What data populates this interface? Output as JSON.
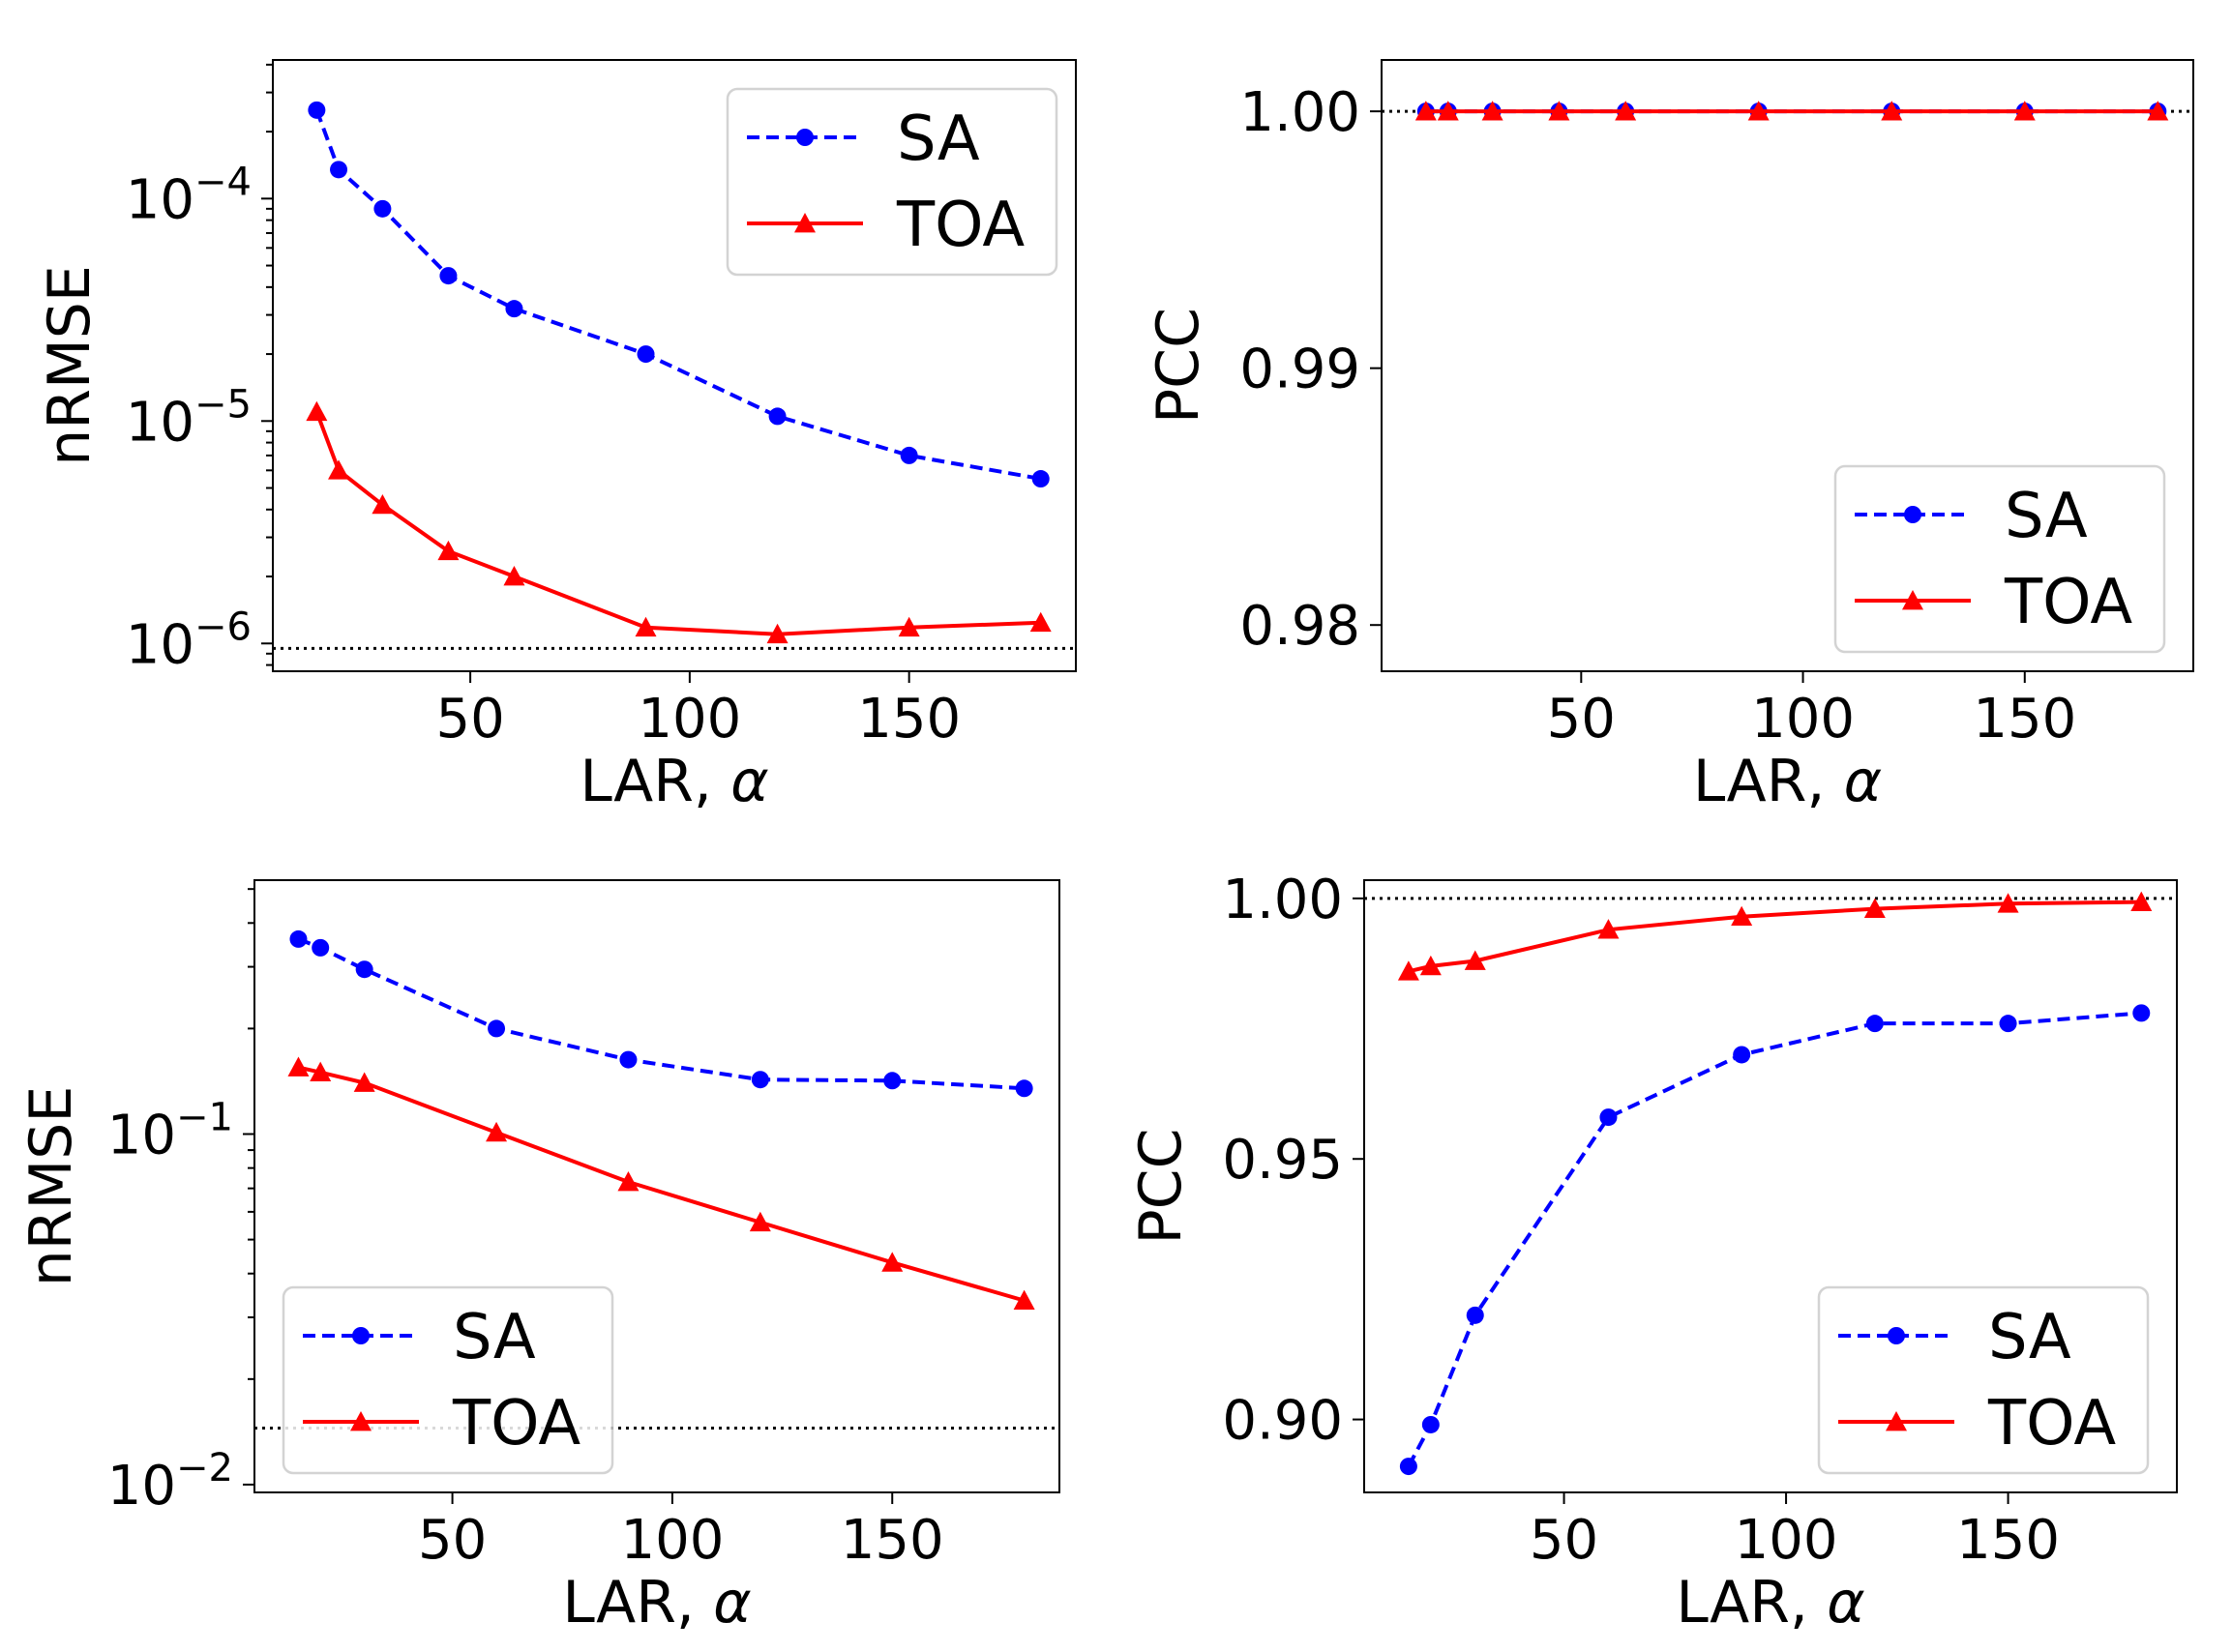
{
  "chart_data": [
    {
      "type": "line",
      "panel": "top-left",
      "xlabel": "LAR, α",
      "ylabel": "nRMSE",
      "yscale": "log",
      "xlim": [
        5,
        188
      ],
      "ylim": [
        7.5e-07,
        0.00042
      ],
      "xticks": [
        50,
        100,
        150
      ],
      "yticks": [
        {
          "value": 1e-06,
          "base": "10",
          "exp": "−6"
        },
        {
          "value": 1e-05,
          "base": "10",
          "exp": "−5"
        },
        {
          "value": 0.0001,
          "base": "10",
          "exp": "−4"
        }
      ],
      "reference_line": 9.5e-07,
      "legend_position": "upper right",
      "x": [
        15,
        20,
        30,
        45,
        60,
        90,
        120,
        150,
        180
      ],
      "series": [
        {
          "name": "SA",
          "color": "#0000ff",
          "linestyle": "dashed",
          "marker": "circle",
          "values": [
            0.00025,
            0.000135,
            9e-05,
            4.5e-05,
            3.2e-05,
            2e-05,
            1.05e-05,
            7e-06,
            5.5e-06
          ]
        },
        {
          "name": "TOA",
          "color": "#ff0000",
          "linestyle": "solid",
          "marker": "triangle",
          "values": [
            1.1e-05,
            6e-06,
            4.2e-06,
            2.6e-06,
            2e-06,
            1.18e-06,
            1.1e-06,
            1.18e-06,
            1.24e-06
          ]
        }
      ]
    },
    {
      "type": "line",
      "panel": "top-right",
      "xlabel": "LAR, α",
      "ylabel": "PCC",
      "yscale": "linear",
      "xlim": [
        5,
        188
      ],
      "ylim": [
        0.9782,
        1.002
      ],
      "xticks": [
        50,
        100,
        150
      ],
      "yticks": [
        {
          "value": 0.98,
          "label": "0.98"
        },
        {
          "value": 0.99,
          "label": "0.99"
        },
        {
          "value": 1.0,
          "label": "1.00"
        }
      ],
      "reference_line": 1.0,
      "legend_position": "lower right",
      "x": [
        15,
        20,
        30,
        45,
        60,
        90,
        120,
        150,
        180
      ],
      "series": [
        {
          "name": "SA",
          "color": "#0000ff",
          "linestyle": "dashed",
          "marker": "circle",
          "values": [
            1.0,
            1.0,
            1.0,
            1.0,
            1.0,
            1.0,
            1.0,
            1.0,
            1.0
          ]
        },
        {
          "name": "TOA",
          "color": "#ff0000",
          "linestyle": "solid",
          "marker": "triangle",
          "values": [
            1.0,
            1.0,
            1.0,
            1.0,
            1.0,
            1.0,
            1.0,
            1.0,
            1.0
          ]
        }
      ]
    },
    {
      "type": "line",
      "panel": "bottom-left",
      "xlabel": "LAR, α",
      "ylabel": "nRMSE",
      "yscale": "log",
      "xlim": [
        5,
        188
      ],
      "ylim": [
        0.0095,
        0.53
      ],
      "xticks": [
        50,
        100,
        150
      ],
      "yticks": [
        {
          "value": 0.01,
          "base": "10",
          "exp": "−2"
        },
        {
          "value": 0.1,
          "base": "10",
          "exp": "−1"
        }
      ],
      "reference_line": 0.0145,
      "legend_position": "lower left",
      "x": [
        15,
        20,
        30,
        60,
        90,
        120,
        150,
        180
      ],
      "series": [
        {
          "name": "SA",
          "color": "#0000ff",
          "linestyle": "dashed",
          "marker": "circle",
          "values": [
            0.36,
            0.34,
            0.295,
            0.2,
            0.163,
            0.143,
            0.142,
            0.135
          ]
        },
        {
          "name": "TOA",
          "color": "#ff0000",
          "linestyle": "solid",
          "marker": "triangle",
          "values": [
            0.155,
            0.15,
            0.14,
            0.101,
            0.073,
            0.056,
            0.043,
            0.0335
          ]
        }
      ]
    },
    {
      "type": "line",
      "panel": "bottom-right",
      "xlabel": "LAR, α",
      "ylabel": "PCC",
      "yscale": "linear",
      "xlim": [
        5,
        188
      ],
      "ylim": [
        0.886,
        1.0035
      ],
      "xticks": [
        50,
        100,
        150
      ],
      "yticks": [
        {
          "value": 0.9,
          "label": "0.90"
        },
        {
          "value": 0.95,
          "label": "0.95"
        },
        {
          "value": 1.0,
          "label": "1.00"
        }
      ],
      "reference_line": 1.0,
      "legend_position": "lower right",
      "x": [
        15,
        20,
        30,
        60,
        90,
        120,
        150,
        180
      ],
      "series": [
        {
          "name": "SA",
          "color": "#0000ff",
          "linestyle": "dashed",
          "marker": "circle",
          "values": [
            0.891,
            0.899,
            0.92,
            0.958,
            0.97,
            0.976,
            0.976,
            0.978
          ]
        },
        {
          "name": "TOA",
          "color": "#ff0000",
          "linestyle": "solid",
          "marker": "triangle",
          "values": [
            0.986,
            0.987,
            0.988,
            0.994,
            0.9965,
            0.998,
            0.999,
            0.9993
          ]
        }
      ]
    }
  ]
}
